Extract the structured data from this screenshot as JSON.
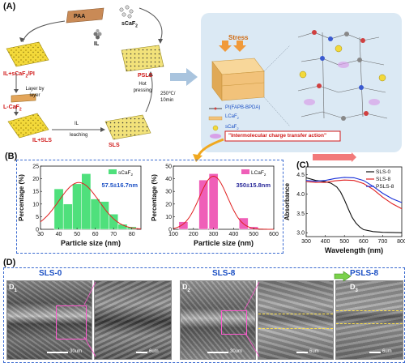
{
  "panels": {
    "a": "(A)",
    "b": "(B)",
    "c": "(C)",
    "d": "(D)"
  },
  "schematic": {
    "paa": "PAA",
    "il": "IL",
    "scaf2": "sCaF",
    "scaf2_sub": "2",
    "il_scaf2_pi": "IL+sCaF",
    "il_scaf2_pi_sub": "2",
    "il_scaf2_pi_tail": "/PI",
    "layer_by_layer": "Layer by layer",
    "lcaf2": "L-CaF",
    "lcaf2_sub": "2",
    "il_sls": "IL+SLS",
    "il_arrow": "IL",
    "leaching": "leaching",
    "sls": "SLS",
    "hot_pressing": "Hot pressing",
    "condition": "250℃/ 10min",
    "psls": "PSLS",
    "stress": "Stress",
    "legend_pi": "PI(FAPB-BPDA)",
    "legend_lcaf2": "LCaF",
    "legend_lcaf2_sub": "2",
    "legend_scaf2": "sCaF",
    "legend_scaf2_sub": "2",
    "charge_transfer": "\"Intermolecular charge transfer action\""
  },
  "chart_data": [
    {
      "type": "bar",
      "title": "",
      "xlabel": "Particle size (nm)",
      "ylabel": "Percentage (%)",
      "xlim": [
        30,
        85
      ],
      "ylim": [
        0,
        25
      ],
      "xticks": [
        30,
        40,
        50,
        60,
        70,
        80
      ],
      "yticks": [
        0,
        5,
        10,
        15,
        20,
        25
      ],
      "legend": "sCaF2",
      "legend_main": "sCaF",
      "legend_sub": "2",
      "annotation": "57.5±16.7nm",
      "bar_width": 5,
      "bars": [
        {
          "x": 40,
          "y": 16
        },
        {
          "x": 45,
          "y": 10
        },
        {
          "x": 50,
          "y": 18
        },
        {
          "x": 55,
          "y": 22
        },
        {
          "x": 60,
          "y": 12
        },
        {
          "x": 65,
          "y": 11
        },
        {
          "x": 70,
          "y": 6
        },
        {
          "x": 75,
          "y": 2
        },
        {
          "x": 80,
          "y": 1
        }
      ],
      "fit": {
        "mean": 51,
        "sd": 11,
        "peak": 18.5
      },
      "bar_color": "#4fe07c",
      "fit_color": "#e02020"
    },
    {
      "type": "bar",
      "title": "",
      "xlabel": "Particle size (nm)",
      "ylabel": "Percentage (%)",
      "xlim": [
        100,
        600
      ],
      "ylim": [
        0,
        50
      ],
      "xticks": [
        100,
        200,
        300,
        400,
        500,
        600
      ],
      "yticks": [
        0,
        10,
        20,
        30,
        40,
        50
      ],
      "legend": "LCaF2",
      "legend_main": "LCaF",
      "legend_sub": "2",
      "annotation": "350±15.8nm",
      "bar_width": 45,
      "bars": [
        {
          "x": 150,
          "y": 6
        },
        {
          "x": 250,
          "y": 39
        },
        {
          "x": 300,
          "y": 44
        },
        {
          "x": 450,
          "y": 9
        },
        {
          "x": 500,
          "y": 2
        }
      ],
      "fit": {
        "mean": 300,
        "sd": 70,
        "peak": 42
      },
      "bar_color": "#ef5fb8",
      "fit_color": "#e02020"
    },
    {
      "type": "line",
      "title": "",
      "xlabel": "Wavelength (nm)",
      "ylabel": "Absorbance",
      "xlim": [
        300,
        800
      ],
      "ylim": [
        2.9,
        4.7
      ],
      "xticks": [
        300,
        400,
        500,
        600,
        700,
        800
      ],
      "yticks": [
        3.0,
        3.5,
        4.0,
        4.5
      ],
      "legend_position": "top-right",
      "series": [
        {
          "name": "SLS-0",
          "color": "#111111",
          "x": [
            300,
            350,
            400,
            430,
            460,
            480,
            500,
            520,
            540,
            560,
            580,
            600,
            650,
            700,
            800
          ],
          "y": [
            4.42,
            4.35,
            4.32,
            4.28,
            4.18,
            4.05,
            3.85,
            3.62,
            3.4,
            3.25,
            3.15,
            3.08,
            3.03,
            3.01,
            3.0
          ]
        },
        {
          "name": "SLS-8",
          "color": "#e02020",
          "x": [
            300,
            350,
            400,
            450,
            500,
            550,
            600,
            650,
            700,
            750,
            800
          ],
          "y": [
            4.32,
            4.3,
            4.3,
            4.34,
            4.36,
            4.35,
            4.27,
            4.12,
            3.92,
            3.75,
            3.62
          ]
        },
        {
          "name": "PSLS-8",
          "color": "#1830d8",
          "x": [
            300,
            350,
            400,
            450,
            500,
            550,
            600,
            650,
            700,
            750,
            800
          ],
          "y": [
            4.35,
            4.33,
            4.35,
            4.4,
            4.43,
            4.42,
            4.35,
            4.2,
            4.02,
            3.88,
            3.78
          ]
        }
      ]
    }
  ],
  "sem": {
    "d1_label": "D",
    "d1_sub": "1",
    "d1_title": "SLS-0",
    "d2_label": "D",
    "d2_sub": "2",
    "d2_title": "SLS-8",
    "d3_label": "D",
    "d3_sub": "3",
    "d3_title": "PSLS-8",
    "scale_30um": "30um",
    "scale_6um": "6um"
  }
}
